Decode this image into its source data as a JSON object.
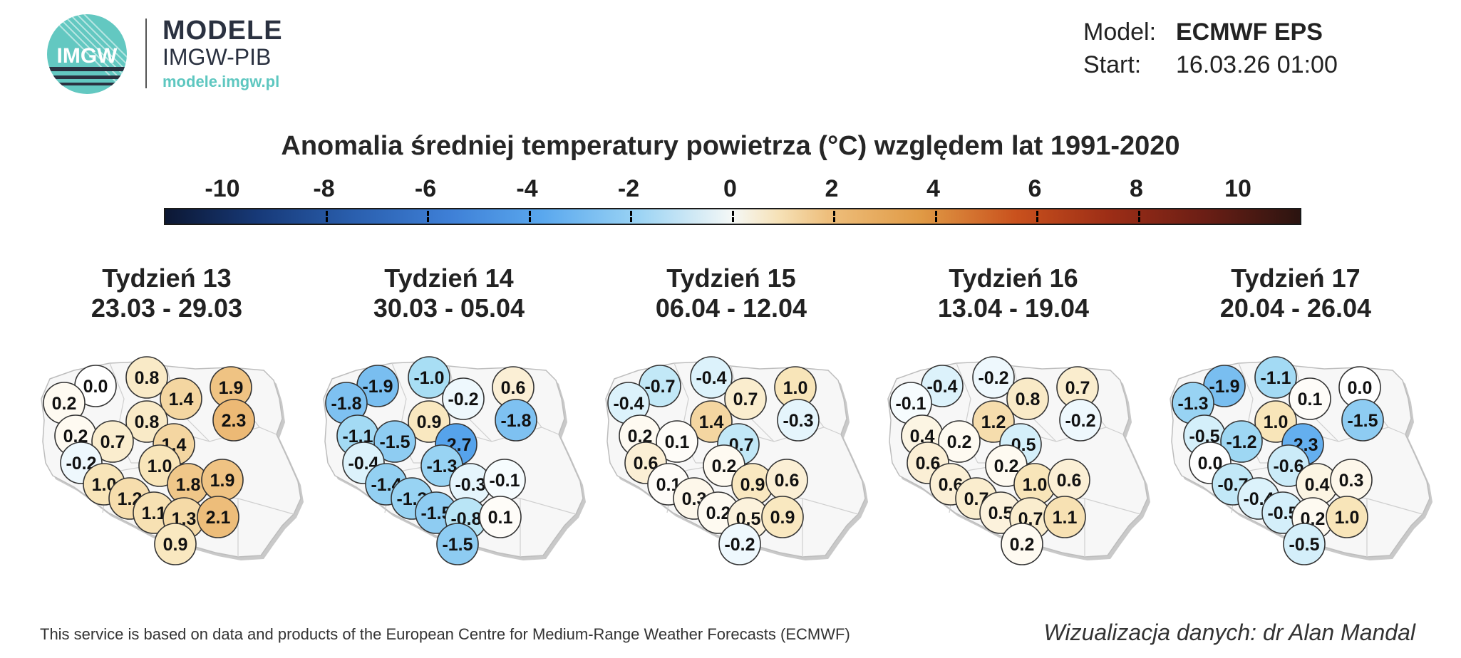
{
  "header": {
    "logo_text": "IMGW",
    "brand_name": "MODELE",
    "brand_org": "IMGW-PIB",
    "brand_url": "modele.imgw.pl"
  },
  "meta": {
    "model_label": "Model:",
    "model_value": "ECMWF EPS",
    "start_label": "Start:",
    "start_value": "16.03.26 01:00"
  },
  "title": "Anomalia średniej temperatury powietrza (°C) względem lat 1991-2020",
  "colorbar": {
    "ticks": [
      "-10",
      "-8",
      "-6",
      "-4",
      "-2",
      "0",
      "2",
      "4",
      "6",
      "8",
      "10"
    ],
    "colors": [
      "#0c1733",
      "#173a79",
      "#2a5fae",
      "#3e7fd6",
      "#5aa8ee",
      "#9ad3f4",
      "#f5f8f6",
      "#eebf7d",
      "#e09a45",
      "#c9511d",
      "#9c2d16",
      "#6b1e15",
      "#2b1410"
    ]
  },
  "weeks": [
    {
      "title": "Tydzień 13",
      "range": "23.03 - 29.03",
      "values": [
        "0.0",
        "0.8",
        "1.9",
        "0.2",
        "1.4",
        "2.3",
        "0.2",
        "0.8",
        "0.7",
        "-0.2",
        "1.4",
        "1.0",
        "1.0",
        "1.8",
        "1.9",
        "1.2",
        "1.1",
        "1.3",
        "2.1",
        "0.9"
      ]
    },
    {
      "title": "Tydzień 14",
      "range": "30.03 - 05.04",
      "values": [
        "-1.9",
        "-1.0",
        "0.6",
        "-1.8",
        "-0.2",
        "-1.8",
        "-1.1",
        "0.9",
        "-1.5",
        "-0.4",
        "-2.7",
        "-1.3",
        "-1.4",
        "-0.3",
        "-0.1",
        "-1.3",
        "-1.5",
        "-0.8",
        "0.1",
        "-1.5"
      ]
    },
    {
      "title": "Tydzień 15",
      "range": "06.04 - 12.04",
      "values": [
        "-0.7",
        "-0.4",
        "1.0",
        "-0.4",
        "0.7",
        "-0.3",
        "0.2",
        "1.4",
        "0.1",
        "0.6",
        "-0.7",
        "0.2",
        "0.1",
        "0.9",
        "0.6",
        "0.3",
        "0.2",
        "0.5",
        "0.9",
        "-0.2"
      ]
    },
    {
      "title": "Tydzień 16",
      "range": "13.04 - 19.04",
      "values": [
        "-0.4",
        "-0.2",
        "0.7",
        "-0.1",
        "0.8",
        "-0.2",
        "0.4",
        "1.2",
        "0.2",
        "0.6",
        "-0.5",
        "0.2",
        "0.6",
        "1.0",
        "0.6",
        "0.7",
        "0.5",
        "0.7",
        "1.1",
        "0.2"
      ]
    },
    {
      "title": "Tydzień 17",
      "range": "20.04 - 26.04",
      "values": [
        "-1.9",
        "-1.1",
        "0.0",
        "-1.3",
        "0.1",
        "-1.5",
        "-0.5",
        "1.0",
        "-1.2",
        "0.0",
        "-2.3",
        "-0.6",
        "-0.7",
        "0.4",
        "0.3",
        "-0.4",
        "-0.5",
        "0.2",
        "1.0",
        "-0.5"
      ]
    }
  ],
  "footer": {
    "left": "This service is based on data and products of the European Centre for Medium-Range Weather Forecasts (ECMWF)",
    "right": "Wizualizacja danych: dr Alan Mandal"
  }
}
